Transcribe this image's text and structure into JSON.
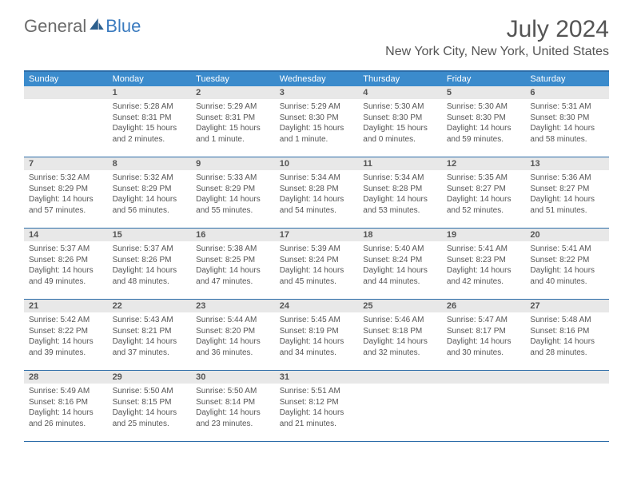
{
  "brand": {
    "text1": "General",
    "text2": "Blue"
  },
  "header": {
    "month_title": "July 2024",
    "location": "New York City, New York, United States"
  },
  "colors": {
    "header_bar": "#3b8bcc",
    "border": "#2c6ca8",
    "daynum_bg": "#e8e8e8",
    "text": "#555555",
    "brand_blue": "#3b7bbf",
    "brand_gray": "#6b6b6b",
    "white": "#ffffff"
  },
  "days_of_week": [
    "Sunday",
    "Monday",
    "Tuesday",
    "Wednesday",
    "Thursday",
    "Friday",
    "Saturday"
  ],
  "weeks": [
    [
      {
        "num": "",
        "sunrise": "",
        "sunset": "",
        "daylight": ""
      },
      {
        "num": "1",
        "sunrise": "Sunrise: 5:28 AM",
        "sunset": "Sunset: 8:31 PM",
        "daylight": "Daylight: 15 hours and 2 minutes."
      },
      {
        "num": "2",
        "sunrise": "Sunrise: 5:29 AM",
        "sunset": "Sunset: 8:31 PM",
        "daylight": "Daylight: 15 hours and 1 minute."
      },
      {
        "num": "3",
        "sunrise": "Sunrise: 5:29 AM",
        "sunset": "Sunset: 8:30 PM",
        "daylight": "Daylight: 15 hours and 1 minute."
      },
      {
        "num": "4",
        "sunrise": "Sunrise: 5:30 AM",
        "sunset": "Sunset: 8:30 PM",
        "daylight": "Daylight: 15 hours and 0 minutes."
      },
      {
        "num": "5",
        "sunrise": "Sunrise: 5:30 AM",
        "sunset": "Sunset: 8:30 PM",
        "daylight": "Daylight: 14 hours and 59 minutes."
      },
      {
        "num": "6",
        "sunrise": "Sunrise: 5:31 AM",
        "sunset": "Sunset: 8:30 PM",
        "daylight": "Daylight: 14 hours and 58 minutes."
      }
    ],
    [
      {
        "num": "7",
        "sunrise": "Sunrise: 5:32 AM",
        "sunset": "Sunset: 8:29 PM",
        "daylight": "Daylight: 14 hours and 57 minutes."
      },
      {
        "num": "8",
        "sunrise": "Sunrise: 5:32 AM",
        "sunset": "Sunset: 8:29 PM",
        "daylight": "Daylight: 14 hours and 56 minutes."
      },
      {
        "num": "9",
        "sunrise": "Sunrise: 5:33 AM",
        "sunset": "Sunset: 8:29 PM",
        "daylight": "Daylight: 14 hours and 55 minutes."
      },
      {
        "num": "10",
        "sunrise": "Sunrise: 5:34 AM",
        "sunset": "Sunset: 8:28 PM",
        "daylight": "Daylight: 14 hours and 54 minutes."
      },
      {
        "num": "11",
        "sunrise": "Sunrise: 5:34 AM",
        "sunset": "Sunset: 8:28 PM",
        "daylight": "Daylight: 14 hours and 53 minutes."
      },
      {
        "num": "12",
        "sunrise": "Sunrise: 5:35 AM",
        "sunset": "Sunset: 8:27 PM",
        "daylight": "Daylight: 14 hours and 52 minutes."
      },
      {
        "num": "13",
        "sunrise": "Sunrise: 5:36 AM",
        "sunset": "Sunset: 8:27 PM",
        "daylight": "Daylight: 14 hours and 51 minutes."
      }
    ],
    [
      {
        "num": "14",
        "sunrise": "Sunrise: 5:37 AM",
        "sunset": "Sunset: 8:26 PM",
        "daylight": "Daylight: 14 hours and 49 minutes."
      },
      {
        "num": "15",
        "sunrise": "Sunrise: 5:37 AM",
        "sunset": "Sunset: 8:26 PM",
        "daylight": "Daylight: 14 hours and 48 minutes."
      },
      {
        "num": "16",
        "sunrise": "Sunrise: 5:38 AM",
        "sunset": "Sunset: 8:25 PM",
        "daylight": "Daylight: 14 hours and 47 minutes."
      },
      {
        "num": "17",
        "sunrise": "Sunrise: 5:39 AM",
        "sunset": "Sunset: 8:24 PM",
        "daylight": "Daylight: 14 hours and 45 minutes."
      },
      {
        "num": "18",
        "sunrise": "Sunrise: 5:40 AM",
        "sunset": "Sunset: 8:24 PM",
        "daylight": "Daylight: 14 hours and 44 minutes."
      },
      {
        "num": "19",
        "sunrise": "Sunrise: 5:41 AM",
        "sunset": "Sunset: 8:23 PM",
        "daylight": "Daylight: 14 hours and 42 minutes."
      },
      {
        "num": "20",
        "sunrise": "Sunrise: 5:41 AM",
        "sunset": "Sunset: 8:22 PM",
        "daylight": "Daylight: 14 hours and 40 minutes."
      }
    ],
    [
      {
        "num": "21",
        "sunrise": "Sunrise: 5:42 AM",
        "sunset": "Sunset: 8:22 PM",
        "daylight": "Daylight: 14 hours and 39 minutes."
      },
      {
        "num": "22",
        "sunrise": "Sunrise: 5:43 AM",
        "sunset": "Sunset: 8:21 PM",
        "daylight": "Daylight: 14 hours and 37 minutes."
      },
      {
        "num": "23",
        "sunrise": "Sunrise: 5:44 AM",
        "sunset": "Sunset: 8:20 PM",
        "daylight": "Daylight: 14 hours and 36 minutes."
      },
      {
        "num": "24",
        "sunrise": "Sunrise: 5:45 AM",
        "sunset": "Sunset: 8:19 PM",
        "daylight": "Daylight: 14 hours and 34 minutes."
      },
      {
        "num": "25",
        "sunrise": "Sunrise: 5:46 AM",
        "sunset": "Sunset: 8:18 PM",
        "daylight": "Daylight: 14 hours and 32 minutes."
      },
      {
        "num": "26",
        "sunrise": "Sunrise: 5:47 AM",
        "sunset": "Sunset: 8:17 PM",
        "daylight": "Daylight: 14 hours and 30 minutes."
      },
      {
        "num": "27",
        "sunrise": "Sunrise: 5:48 AM",
        "sunset": "Sunset: 8:16 PM",
        "daylight": "Daylight: 14 hours and 28 minutes."
      }
    ],
    [
      {
        "num": "28",
        "sunrise": "Sunrise: 5:49 AM",
        "sunset": "Sunset: 8:16 PM",
        "daylight": "Daylight: 14 hours and 26 minutes."
      },
      {
        "num": "29",
        "sunrise": "Sunrise: 5:50 AM",
        "sunset": "Sunset: 8:15 PM",
        "daylight": "Daylight: 14 hours and 25 minutes."
      },
      {
        "num": "30",
        "sunrise": "Sunrise: 5:50 AM",
        "sunset": "Sunset: 8:14 PM",
        "daylight": "Daylight: 14 hours and 23 minutes."
      },
      {
        "num": "31",
        "sunrise": "Sunrise: 5:51 AM",
        "sunset": "Sunset: 8:12 PM",
        "daylight": "Daylight: 14 hours and 21 minutes."
      },
      {
        "num": "",
        "sunrise": "",
        "sunset": "",
        "daylight": ""
      },
      {
        "num": "",
        "sunrise": "",
        "sunset": "",
        "daylight": ""
      },
      {
        "num": "",
        "sunrise": "",
        "sunset": "",
        "daylight": ""
      }
    ]
  ]
}
